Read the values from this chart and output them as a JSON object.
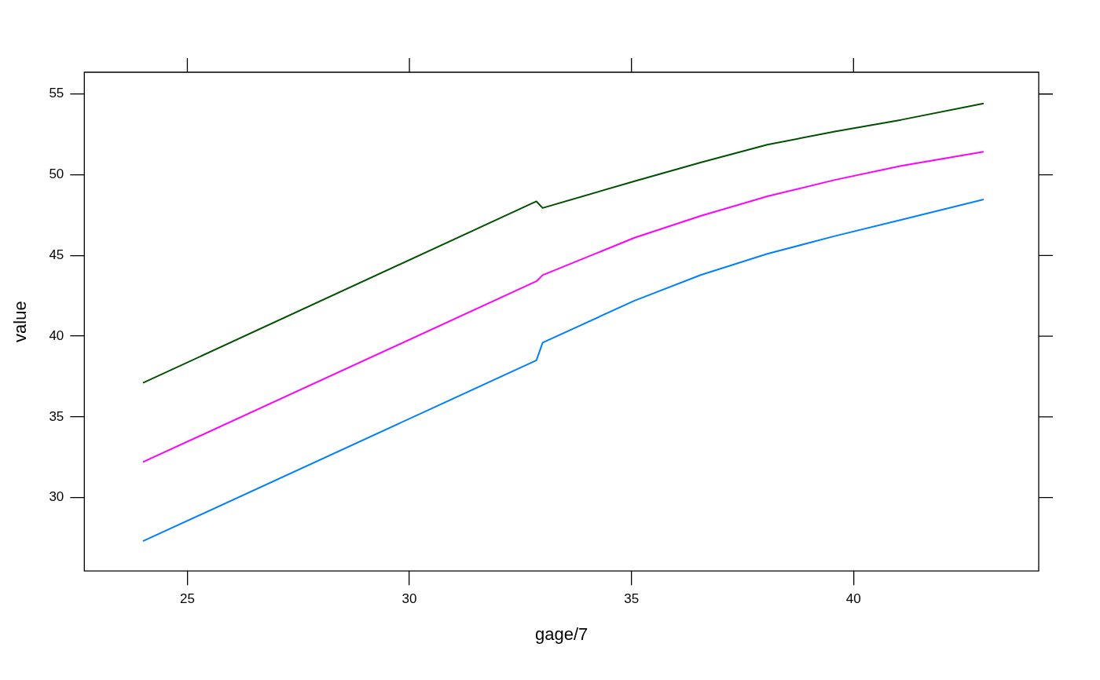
{
  "chart_data": {
    "type": "line",
    "xlabel": "gage/7",
    "ylabel": "value",
    "xlim": [
      22.68,
      44.17
    ],
    "ylim": [
      25.45,
      56.35
    ],
    "xticks": [
      25,
      30,
      35,
      40
    ],
    "yticks": [
      30,
      35,
      40,
      45,
      50,
      55
    ],
    "grid": false,
    "legend": false,
    "marker": "none",
    "line_style": "solid",
    "series": [
      {
        "color": "#0080ff",
        "x": [
          24,
          32.86,
          33,
          35.07,
          36.57,
          38.06,
          39.58,
          41.07,
          42.93
        ],
        "values": [
          27.3,
          38.5,
          39.6,
          42.2,
          43.8,
          45.1,
          46.2,
          47.2,
          48.47
        ]
      },
      {
        "color": "#ff00ff",
        "x": [
          24,
          32.86,
          33,
          35.07,
          36.57,
          38.06,
          39.58,
          41.07,
          42.93
        ],
        "values": [
          32.2,
          43.4,
          43.78,
          46.1,
          47.46,
          48.66,
          49.68,
          50.55,
          51.42
        ]
      },
      {
        "color": "#005000",
        "x": [
          24,
          32.86,
          33,
          35.07,
          36.57,
          38.06,
          39.58,
          41.07,
          42.93
        ],
        "values": [
          37.1,
          48.35,
          47.94,
          49.6,
          50.77,
          51.86,
          52.68,
          53.4,
          54.42
        ]
      }
    ]
  }
}
